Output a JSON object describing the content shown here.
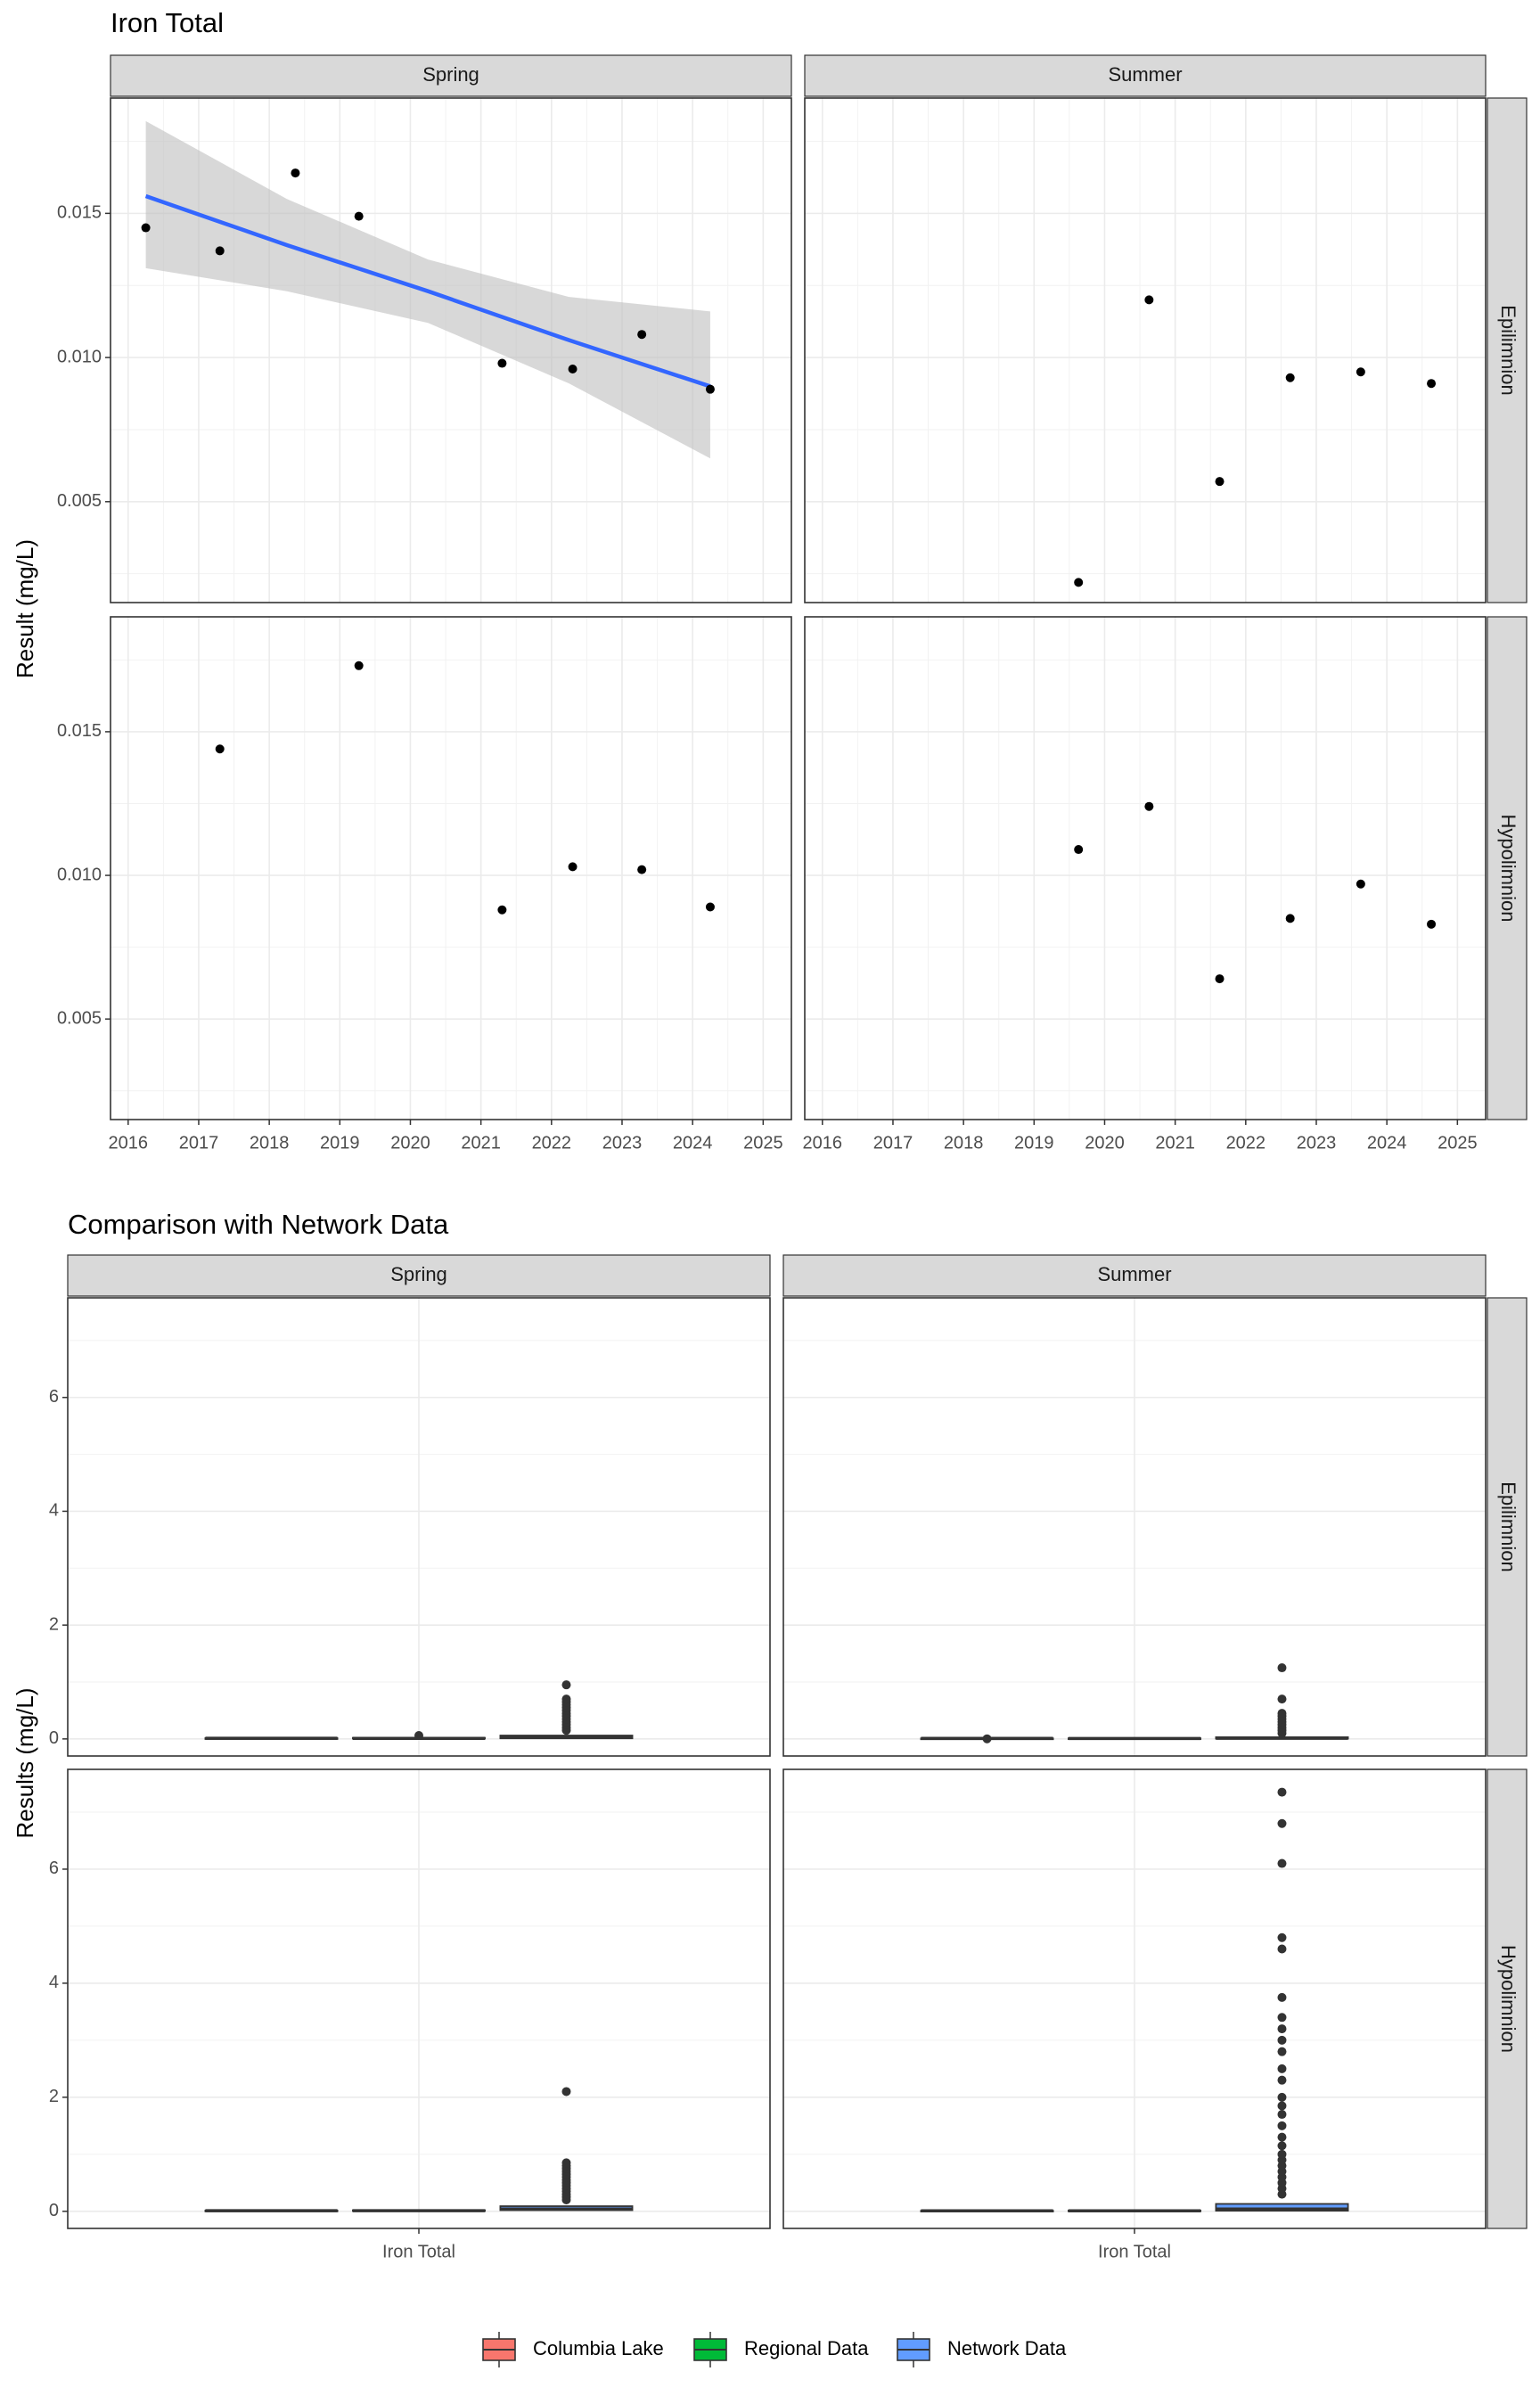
{
  "chart_data": [
    {
      "type": "scatter",
      "title": "Iron Total",
      "ylabel": "Result (mg/L)",
      "xlabel": "",
      "column_facets": [
        "Spring",
        "Summer"
      ],
      "row_facets": [
        "Epilimnion",
        "Hypolimnion"
      ],
      "xlim": [
        2015.75,
        2025.4
      ],
      "ylim": [
        0.0015,
        0.019
      ],
      "x_ticks": [
        "2016",
        "2017",
        "2018",
        "2019",
        "2020",
        "2021",
        "2022",
        "2023",
        "2024",
        "2025"
      ],
      "y_ticks": [
        "0.005",
        "0.010",
        "0.015"
      ],
      "grid": true,
      "panels": [
        {
          "column": "Spring",
          "row": "Epilimnion",
          "points": [
            {
              "x": 2016.25,
              "y": 0.0145
            },
            {
              "x": 2017.3,
              "y": 0.0137
            },
            {
              "x": 2018.37,
              "y": 0.0164
            },
            {
              "x": 2019.27,
              "y": 0.0149
            },
            {
              "x": 2021.3,
              "y": 0.0098
            },
            {
              "x": 2022.3,
              "y": 0.0096
            },
            {
              "x": 2023.28,
              "y": 0.0108
            },
            {
              "x": 2024.25,
              "y": 0.0089
            }
          ],
          "trend": {
            "x": [
              2016.25,
              2018.25,
              2020.25,
              2022.25,
              2024.25
            ],
            "y": [
              0.0156,
              0.0139,
              0.0123,
              0.0106,
              0.009
            ],
            "lower": [
              0.0131,
              0.0123,
              0.0112,
              0.0091,
              0.0065
            ],
            "upper": [
              0.0182,
              0.0155,
              0.0134,
              0.0121,
              0.0116
            ]
          }
        },
        {
          "column": "Summer",
          "row": "Epilimnion",
          "points": [
            {
              "x": 2019.63,
              "y": 0.0022
            },
            {
              "x": 2020.63,
              "y": 0.012
            },
            {
              "x": 2021.63,
              "y": 0.0057
            },
            {
              "x": 2022.63,
              "y": 0.0093
            },
            {
              "x": 2023.63,
              "y": 0.0095
            },
            {
              "x": 2024.63,
              "y": 0.0091
            }
          ]
        },
        {
          "column": "Spring",
          "row": "Hypolimnion",
          "points": [
            {
              "x": 2017.3,
              "y": 0.0144
            },
            {
              "x": 2019.27,
              "y": 0.0173
            },
            {
              "x": 2021.3,
              "y": 0.0088
            },
            {
              "x": 2022.3,
              "y": 0.0103
            },
            {
              "x": 2023.28,
              "y": 0.0102
            },
            {
              "x": 2024.25,
              "y": 0.0089
            }
          ]
        },
        {
          "column": "Summer",
          "row": "Hypolimnion",
          "points": [
            {
              "x": 2019.63,
              "y": 0.0109
            },
            {
              "x": 2020.63,
              "y": 0.0124
            },
            {
              "x": 2021.63,
              "y": 0.0064
            },
            {
              "x": 2022.63,
              "y": 0.0085
            },
            {
              "x": 2023.63,
              "y": 0.0097
            },
            {
              "x": 2024.63,
              "y": 0.0083
            }
          ]
        }
      ],
      "colors": {
        "points": "#000000",
        "trend_line": "#3366FF",
        "ribbon": "#BEBEBE",
        "strip": "#D9D9D9"
      }
    },
    {
      "type": "box",
      "title": "Comparison with Network Data",
      "ylabel": "Results (mg/L)",
      "xlabel": "",
      "column_facets": [
        "Spring",
        "Summer"
      ],
      "row_facets": [
        "Epilimnion",
        "Hypolimnion"
      ],
      "categories": [
        "Iron Total"
      ],
      "ylim": [
        -0.3,
        7.75
      ],
      "y_ticks": [
        "0",
        "2",
        "4",
        "6"
      ],
      "grid": true,
      "legend": {
        "placement": "bottom",
        "entries": [
          {
            "label": "Columbia Lake",
            "color": "#F8766D"
          },
          {
            "label": "Regional Data",
            "color": "#00BA38"
          },
          {
            "label": "Network Data",
            "color": "#619CFF"
          }
        ]
      },
      "panels": [
        {
          "column": "Spring",
          "row": "Epilimnion",
          "boxes": [
            {
              "series": "Columbia Lake",
              "q1": 0.009,
              "median": 0.011,
              "q3": 0.014,
              "outliers": []
            },
            {
              "series": "Regional Data",
              "q1": 0.005,
              "median": 0.01,
              "q3": 0.02,
              "outliers": [
                0.06
              ]
            },
            {
              "series": "Network Data",
              "q1": 0.01,
              "median": 0.025,
              "q3": 0.06,
              "outliers": [
                0.15,
                0.2,
                0.25,
                0.3,
                0.35,
                0.4,
                0.45,
                0.5,
                0.55,
                0.6,
                0.65,
                0.7,
                0.95
              ]
            }
          ]
        },
        {
          "column": "Summer",
          "row": "Epilimnion",
          "boxes": [
            {
              "series": "Columbia Lake",
              "q1": 0.006,
              "median": 0.009,
              "q3": 0.0094,
              "outliers": [
                0.002
              ]
            },
            {
              "series": "Regional Data",
              "q1": 0.004,
              "median": 0.008,
              "q3": 0.012,
              "outliers": []
            },
            {
              "series": "Network Data",
              "q1": 0.005,
              "median": 0.012,
              "q3": 0.03,
              "outliers": [
                0.1,
                0.15,
                0.2,
                0.25,
                0.3,
                0.35,
                0.4,
                0.45,
                0.7,
                1.25
              ]
            }
          ]
        },
        {
          "column": "Spring",
          "row": "Hypolimnion",
          "boxes": [
            {
              "series": "Columbia Lake",
              "q1": 0.009,
              "median": 0.0103,
              "q3": 0.0144,
              "outliers": []
            },
            {
              "series": "Regional Data",
              "q1": 0.005,
              "median": 0.01,
              "q3": 0.02,
              "outliers": []
            },
            {
              "series": "Network Data",
              "q1": 0.02,
              "median": 0.04,
              "q3": 0.09,
              "outliers": [
                0.2,
                0.25,
                0.3,
                0.35,
                0.4,
                0.45,
                0.5,
                0.55,
                0.6,
                0.65,
                0.7,
                0.75,
                0.8,
                0.85,
                2.1
              ]
            }
          ]
        },
        {
          "column": "Summer",
          "row": "Hypolimnion",
          "boxes": [
            {
              "series": "Columbia Lake",
              "q1": 0.0083,
              "median": 0.009,
              "q3": 0.0109,
              "outliers": []
            },
            {
              "series": "Regional Data",
              "q1": 0.004,
              "median": 0.008,
              "q3": 0.015,
              "outliers": []
            },
            {
              "series": "Network Data",
              "q1": 0.01,
              "median": 0.04,
              "q3": 0.13,
              "outliers": [
                0.3,
                0.4,
                0.5,
                0.6,
                0.7,
                0.8,
                0.9,
                1.0,
                1.15,
                1.3,
                1.5,
                1.7,
                1.85,
                2.0,
                2.3,
                2.5,
                2.8,
                3.0,
                3.2,
                3.4,
                3.75,
                4.6,
                4.8,
                6.1,
                6.8,
                7.35
              ]
            }
          ]
        }
      ]
    }
  ]
}
